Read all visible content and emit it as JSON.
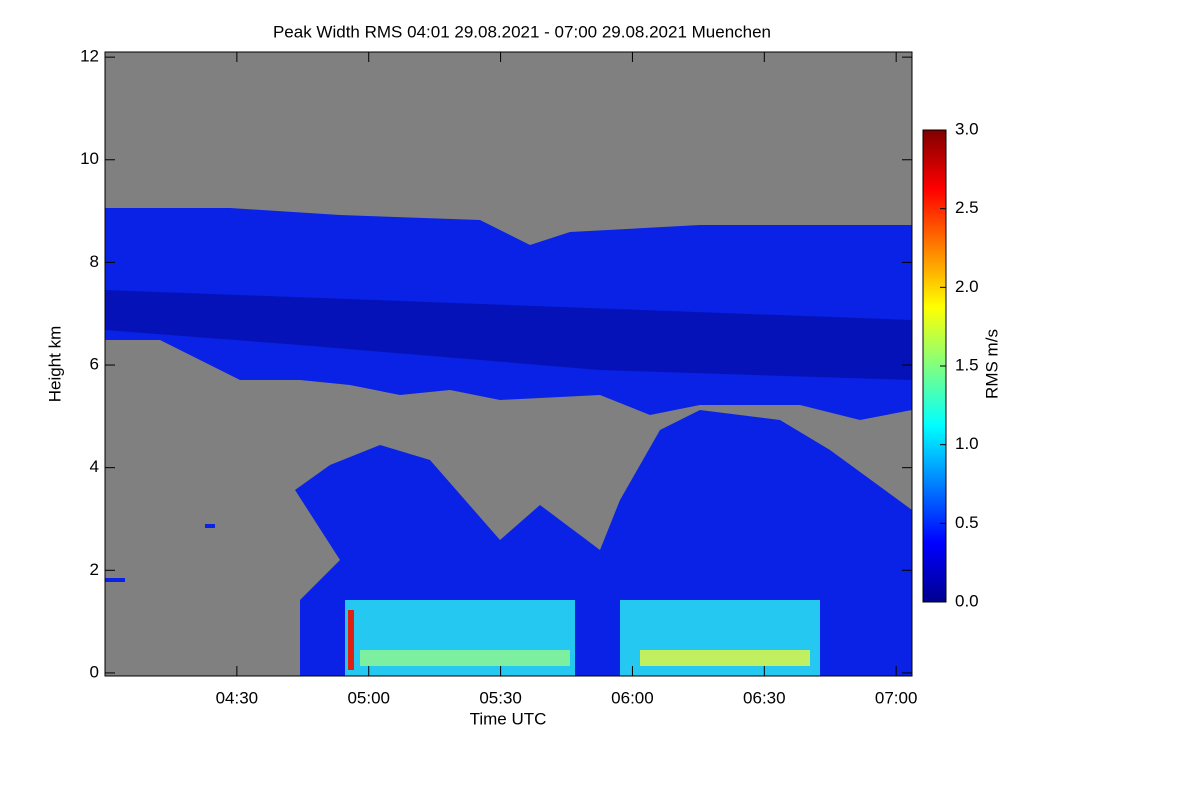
{
  "chart_data": {
    "type": "heatmap",
    "title": "Peak Width RMS   04:01 29.08.2021 - 07:00 29.08.2021 Muenchen",
    "x_label": "Time UTC",
    "y_label": "Height km",
    "colorbar_label": "RMS m/s",
    "xlim": [
      240,
      423.6
    ],
    "xticks": [
      {
        "value": 270,
        "label": "04:30"
      },
      {
        "value": 300,
        "label": "05:00"
      },
      {
        "value": 330,
        "label": "05:30"
      },
      {
        "value": 360,
        "label": "06:00"
      },
      {
        "value": 390,
        "label": "06:30"
      },
      {
        "value": 420,
        "label": "07:00"
      }
    ],
    "ylim": [
      -0.06,
      12.1
    ],
    "yticks": [
      0,
      2,
      4,
      6,
      8,
      10,
      12
    ],
    "clim": [
      0,
      3
    ],
    "cticks": [
      {
        "value": 0,
        "label": "0.0"
      },
      {
        "value": 0.5,
        "label": "0.5"
      },
      {
        "value": 1,
        "label": "1.0"
      },
      {
        "value": 1.5,
        "label": "1.5"
      },
      {
        "value": 2,
        "label": "2.0"
      },
      {
        "value": 2.5,
        "label": "2.5"
      },
      {
        "value": 3,
        "label": "3.0"
      }
    ],
    "colormap": [
      "#00008f",
      "#0000ff",
      "#0080ff",
      "#00ffff",
      "#80ff80",
      "#ffff00",
      "#ff8000",
      "#ff0000",
      "#800000"
    ],
    "missing_color": "#808080"
  }
}
